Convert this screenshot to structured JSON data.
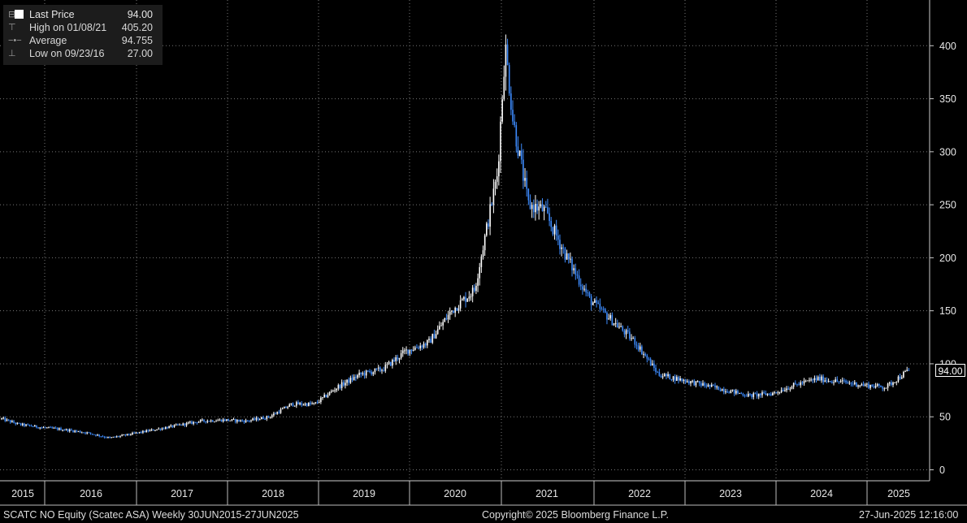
{
  "legend": {
    "last_price_label": "Last Price",
    "last_price_value": "94.00",
    "high_label": "High on 01/08/21",
    "high_value": "405.20",
    "average_label": "Average",
    "average_value": "94.755",
    "low_label": "Low on 09/23/16",
    "low_value": "27.00"
  },
  "last_price_tag": "94.00",
  "footer": {
    "left": "SCATC NO Equity (Scatec ASA)  Weekly 30JUN2015-27JUN2025",
    "center": "Copyright© 2025 Bloomberg Finance L.P.",
    "right": "27-Jun-2025 12:16:00"
  },
  "colors": {
    "background": "#000000",
    "up_candle": "#ffffff",
    "down_candle": "#3d8bfd",
    "grid": "#777777",
    "last_tag_border": "#ffffff"
  },
  "chart_data": {
    "type": "candlestick",
    "frequency": "weekly",
    "ylim": [
      0,
      420
    ],
    "yticks": [
      0,
      50,
      100,
      150,
      200,
      250,
      300,
      350,
      400
    ],
    "xticks": [
      "2015",
      "2016",
      "2017",
      "2018",
      "2019",
      "2020",
      "2021",
      "2022",
      "2023",
      "2024",
      "2025"
    ],
    "grid": true,
    "y_axis_side": "right",
    "approx_close_path": [
      [
        "2015-06",
        50
      ],
      [
        "2015-09",
        43
      ],
      [
        "2015-12",
        40
      ],
      [
        "2016-03",
        38
      ],
      [
        "2016-06",
        35
      ],
      [
        "2016-09",
        30
      ],
      [
        "2016-12",
        34
      ],
      [
        "2017-03",
        38
      ],
      [
        "2017-06",
        42
      ],
      [
        "2017-09",
        46
      ],
      [
        "2017-12",
        47
      ],
      [
        "2018-03",
        46
      ],
      [
        "2018-06",
        50
      ],
      [
        "2018-09",
        62
      ],
      [
        "2018-12",
        62
      ],
      [
        "2019-03",
        78
      ],
      [
        "2019-06",
        90
      ],
      [
        "2019-09",
        95
      ],
      [
        "2019-12",
        112
      ],
      [
        "2020-03",
        120
      ],
      [
        "2020-06",
        150
      ],
      [
        "2020-09",
        170
      ],
      [
        "2020-12",
        280
      ],
      [
        "2021-01",
        400
      ],
      [
        "2021-02",
        330
      ],
      [
        "2021-04",
        250
      ],
      [
        "2021-06",
        245
      ],
      [
        "2021-09",
        200
      ],
      [
        "2021-12",
        160
      ],
      [
        "2022-03",
        140
      ],
      [
        "2022-06",
        120
      ],
      [
        "2022-09",
        90
      ],
      [
        "2022-12",
        85
      ],
      [
        "2023-03",
        80
      ],
      [
        "2023-06",
        75
      ],
      [
        "2023-09",
        70
      ],
      [
        "2023-12",
        72
      ],
      [
        "2024-03",
        80
      ],
      [
        "2024-06",
        86
      ],
      [
        "2024-09",
        83
      ],
      [
        "2024-12",
        80
      ],
      [
        "2025-03",
        78
      ],
      [
        "2025-06",
        94
      ]
    ],
    "last": 94.0,
    "high": {
      "date": "01/08/21",
      "value": 405.2
    },
    "low": {
      "date": "09/23/16",
      "value": 27.0
    },
    "average": 94.755
  }
}
